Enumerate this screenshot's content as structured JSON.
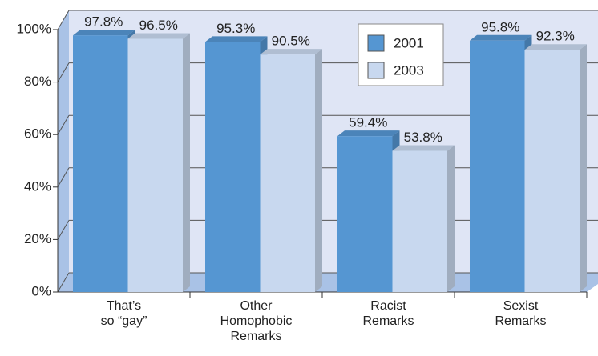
{
  "chart_data": {
    "type": "bar",
    "categories": [
      "That’s\nso “gay”",
      "Other\nHomophobic\nRemarks",
      "Racist\nRemarks",
      "Sexist\nRemarks"
    ],
    "series": [
      {
        "name": "2001",
        "color": "#5596d2",
        "values": [
          97.8,
          95.3,
          59.4,
          95.8
        ],
        "value_labels": [
          "97.8%",
          "95.3%",
          "59.4%",
          "95.8%"
        ]
      },
      {
        "name": "2003",
        "color": "#c8d8ef",
        "values": [
          96.5,
          90.5,
          53.8,
          92.3
        ],
        "value_labels": [
          "96.5%",
          "90.5%",
          "53.8%",
          "92.3%"
        ]
      }
    ],
    "ylim": [
      0,
      100
    ],
    "yticks": [
      {
        "value": 0,
        "label": "0%"
      },
      {
        "value": 20,
        "label": "20%"
      },
      {
        "value": 40,
        "label": "40%"
      },
      {
        "value": 60,
        "label": "60%"
      },
      {
        "value": 80,
        "label": "80%"
      },
      {
        "value": 100,
        "label": "100%"
      }
    ],
    "grid": true,
    "legend": "top-center"
  }
}
